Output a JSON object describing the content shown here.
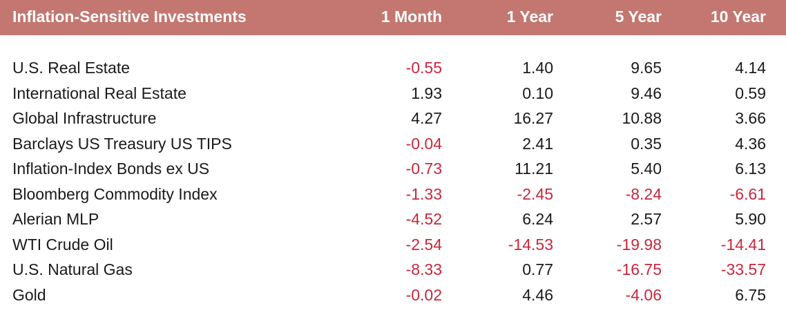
{
  "table": {
    "columns": [
      "Inflation-Sensitive Investments",
      "1 Month",
      "1 Year",
      "5 Year",
      "10 Year"
    ],
    "rows": [
      {
        "name": "U.S. Real Estate",
        "values": [
          "-0.55",
          "1.40",
          "9.65",
          "4.14"
        ]
      },
      {
        "name": "International Real Estate",
        "values": [
          "1.93",
          "0.10",
          "9.46",
          "0.59"
        ]
      },
      {
        "name": "Global Infrastructure",
        "values": [
          "4.27",
          "16.27",
          "10.88",
          "3.66"
        ]
      },
      {
        "name": "Barclays US Treasury US TIPS",
        "values": [
          "-0.04",
          "2.41",
          "0.35",
          "4.36"
        ]
      },
      {
        "name": "Inflation-Index Bonds ex US",
        "values": [
          "-0.73",
          "11.21",
          "5.40",
          "6.13"
        ]
      },
      {
        "name": "Bloomberg Commodity Index",
        "values": [
          "-1.33",
          "-2.45",
          "-8.24",
          "-6.61"
        ]
      },
      {
        "name": "Alerian MLP",
        "values": [
          "-4.52",
          "6.24",
          "2.57",
          "5.90"
        ]
      },
      {
        "name": "WTI Crude Oil",
        "values": [
          "-2.54",
          "-14.53",
          "-19.98",
          "-14.41"
        ]
      },
      {
        "name": "U.S. Natural Gas",
        "values": [
          "-8.33",
          "0.77",
          "-16.75",
          "-33.57"
        ]
      },
      {
        "name": "Gold",
        "values": [
          "-0.02",
          "4.46",
          "-4.06",
          "6.75"
        ]
      }
    ]
  },
  "colors": {
    "header_bg": "#c37770",
    "header_text": "#ffffff",
    "negative": "#c8273d",
    "text": "#1a1a1a"
  }
}
